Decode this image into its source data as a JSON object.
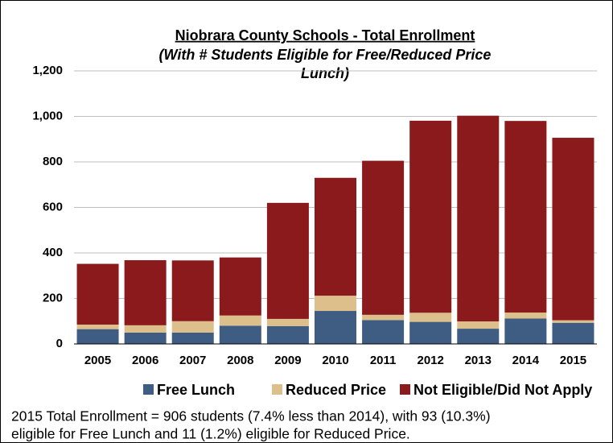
{
  "chart_data": {
    "type": "stacked_bar",
    "title": "Niobrara County Schools - Total Enrollment",
    "subtitle": [
      "(With # Students Eligible for Free/Reduced Price",
      "Lunch)"
    ],
    "categories": [
      "2005",
      "2006",
      "2007",
      "2008",
      "2009",
      "2010",
      "2011",
      "2012",
      "2013",
      "2014",
      "2015"
    ],
    "series": [
      {
        "name": "Free Lunch",
        "color": "#3f5c83",
        "values": [
          65,
          50,
          50,
          80,
          78,
          145,
          105,
          97,
          67,
          112,
          93
        ]
      },
      {
        "name": "Reduced Price",
        "color": "#dcbf8a",
        "values": [
          20,
          32,
          50,
          45,
          32,
          67,
          23,
          40,
          32,
          26,
          11
        ]
      },
      {
        "name": "Not Eligible/Did Not Apply",
        "color": "#8b1a1c",
        "values": [
          267,
          286,
          267,
          255,
          510,
          518,
          677,
          844,
          904,
          842,
          802
        ]
      }
    ],
    "ylim": [
      0,
      1200
    ],
    "yticks": [
      0,
      200,
      400,
      600,
      800,
      {
        "value": 1000,
        "label": "1,000"
      },
      {
        "value": 1200,
        "label": "1,200"
      }
    ],
    "grid": true,
    "legend": "bottom",
    "annotations": [
      "2015 Total Enrollment = 906 students (7.4% less than 2014), with 93 (10.3%)",
      "eligible for Free Lunch and 11 (1.2%) eligible for Reduced Price."
    ]
  }
}
